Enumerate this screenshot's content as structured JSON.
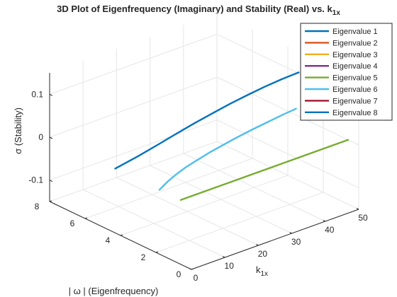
{
  "chart_data": {
    "type": "line",
    "projection": "3d",
    "title": "3D Plot of Eigenfrequency (Imaginary) and Stability (Real) vs. k",
    "title_subscript": "1x",
    "xlabel": "k",
    "xlabel_subscript": "1x",
    "ylabel": "| ω | (Eigenfrequency)",
    "zlabel": "σ (Stability)",
    "xlim": [
      0,
      50
    ],
    "ylim": [
      0,
      8
    ],
    "zlim": [
      -0.15,
      0.15
    ],
    "xticks": [
      "0",
      "10",
      "20",
      "30",
      "40",
      "50"
    ],
    "yticks": [
      "0",
      "2",
      "4",
      "6",
      "8"
    ],
    "zticks": [
      "-0.1",
      "0",
      "0.1"
    ],
    "grid": true,
    "legend_position": "top-right",
    "series": [
      {
        "name": "Eigenvalue 1",
        "color": "#0072BD",
        "x": [
          0,
          5,
          10,
          15,
          20,
          25,
          30,
          35,
          40,
          45,
          50
        ],
        "y": [
          4.3,
          3.95,
          3.78,
          3.67,
          3.59,
          3.53,
          3.49,
          3.45,
          3.42,
          3.4,
          3.39
        ],
        "z": [
          0,
          0.022,
          0.038,
          0.052,
          0.064,
          0.074,
          0.083,
          0.09,
          0.096,
          0.1,
          0.102
        ]
      },
      {
        "name": "Eigenvalue 2",
        "color": "#D95319",
        "x": [],
        "y": [],
        "z": []
      },
      {
        "name": "Eigenvalue 3",
        "color": "#EDB120",
        "x": [],
        "y": [],
        "z": []
      },
      {
        "name": "Eigenvalue 4",
        "color": "#7E2F8E",
        "x": [],
        "y": [],
        "z": []
      },
      {
        "name": "Eigenvalue 5",
        "color": "#77AC30",
        "x": [
          0,
          10,
          20,
          30,
          40,
          50
        ],
        "y": [
          0.6,
          0.6,
          0.6,
          0.6,
          0.6,
          0.6
        ],
        "z": [
          0,
          0,
          0,
          0,
          0,
          0
        ]
      },
      {
        "name": "Eigenvalue 6",
        "color": "#4DBEEE",
        "x": [
          0,
          2,
          4,
          7,
          10,
          14,
          18,
          22,
          27,
          32,
          36,
          40
        ],
        "y": [
          1.8,
          1.72,
          1.68,
          1.66,
          1.65,
          1.65,
          1.65,
          1.65,
          1.65,
          1.65,
          1.65,
          1.65
        ],
        "z": [
          0,
          0.015,
          0.025,
          0.035,
          0.042,
          0.05,
          0.056,
          0.062,
          0.068,
          0.073,
          0.077,
          0.08
        ]
      },
      {
        "name": "Eigenvalue 7",
        "color": "#A2142F",
        "x": [],
        "y": [],
        "z": []
      },
      {
        "name": "Eigenvalue 8",
        "color": "#0072BD",
        "x": [],
        "y": [],
        "z": []
      }
    ]
  }
}
